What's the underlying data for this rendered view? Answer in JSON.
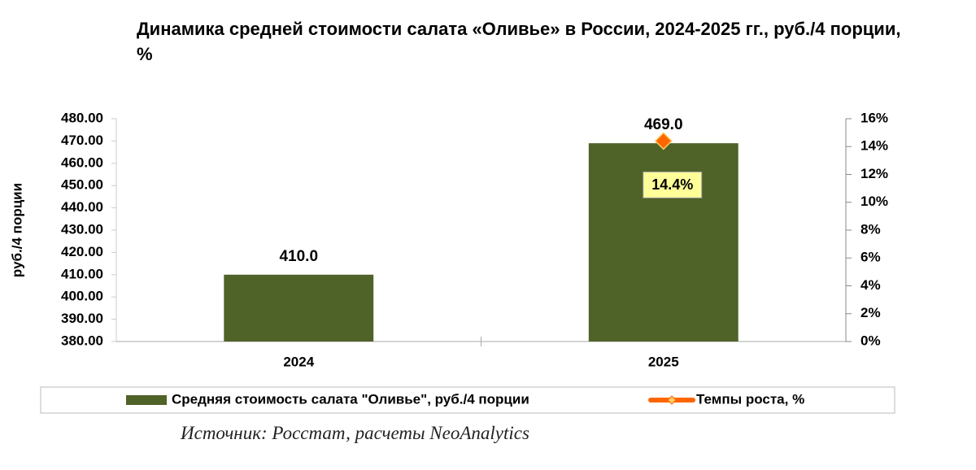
{
  "chart_data": {
    "type": "bar",
    "title": "Динамика средней стоимости салата «Оливье» в России, 2024-2025 гг., руб./4 порции, %",
    "y_label": "руб./4 порции",
    "source": "Источник: Росстат, расчеты NeoAnalytics",
    "categories": [
      "2024",
      "2025"
    ],
    "series": [
      {
        "name": "Средняя стоимость салата \"Оливье\", руб./4 порции",
        "type": "bar",
        "color": "#4f6228",
        "values": [
          410.0,
          469.0
        ],
        "value_labels": [
          "410.0",
          "469.0"
        ]
      },
      {
        "name": "Темпы роста, %",
        "type": "line",
        "axis": "y2",
        "color": "#ff6600",
        "values": [
          null,
          14.4
        ],
        "value_labels": [
          null,
          "14.4%"
        ]
      }
    ],
    "ylim": [
      380,
      480
    ],
    "yticks": [
      {
        "value": 380,
        "label": "380.00"
      },
      {
        "value": 390,
        "label": "390.00"
      },
      {
        "value": 400,
        "label": "400.00"
      },
      {
        "value": 410,
        "label": "410.00"
      },
      {
        "value": 420,
        "label": "420.00"
      },
      {
        "value": 430,
        "label": "430.00"
      },
      {
        "value": 440,
        "label": "440.00"
      },
      {
        "value": 450,
        "label": "450.00"
      },
      {
        "value": 460,
        "label": "460.00"
      },
      {
        "value": 470,
        "label": "470.00"
      },
      {
        "value": 480,
        "label": "480.00"
      }
    ],
    "y2lim": [
      0,
      16
    ],
    "y2ticks": [
      {
        "value": 0,
        "label": "0%"
      },
      {
        "value": 2,
        "label": "2%"
      },
      {
        "value": 4,
        "label": "4%"
      },
      {
        "value": 6,
        "label": "6%"
      },
      {
        "value": 8,
        "label": "8%"
      },
      {
        "value": 10,
        "label": "10%"
      },
      {
        "value": 12,
        "label": "12%"
      },
      {
        "value": 14,
        "label": "14%"
      },
      {
        "value": 16,
        "label": "16%"
      }
    ],
    "grid": false,
    "legend": "bottom"
  }
}
